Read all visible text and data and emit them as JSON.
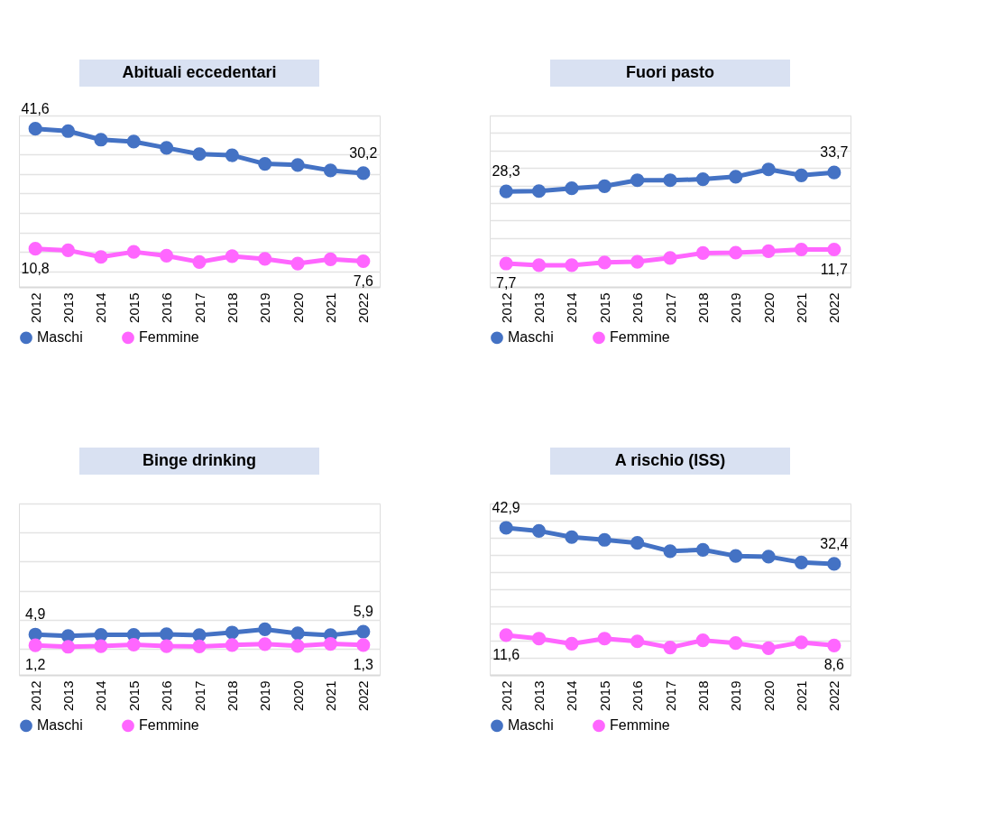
{
  "chart_data": [
    {
      "type": "line",
      "title": "Abituali eccedentari",
      "categories": [
        "2012",
        "2013",
        "2014",
        "2015",
        "2016",
        "2017",
        "2018",
        "2019",
        "2020",
        "2021",
        "2022"
      ],
      "ylim": [
        1,
        45
      ],
      "grid": "y",
      "tick_labels": "x",
      "legend": "bottom",
      "marker": "circle",
      "line_style": "solid",
      "series": [
        {
          "name": "Maschi",
          "color": "#4472c4",
          "values": [
            41.6,
            41.0,
            38.8,
            38.3,
            36.7,
            35.1,
            34.8,
            32.6,
            32.3,
            30.9,
            30.2
          ],
          "value_labels": [
            "41,6",
            null,
            null,
            null,
            null,
            null,
            null,
            null,
            null,
            null,
            "30,2"
          ]
        },
        {
          "name": "Femmine",
          "color": "#ff66ff",
          "values": [
            10.8,
            10.4,
            8.7,
            10.0,
            9.0,
            7.4,
            8.9,
            8.2,
            7.0,
            8.1,
            7.6
          ],
          "value_labels": [
            "10,8",
            null,
            null,
            null,
            null,
            null,
            null,
            null,
            null,
            null,
            "7,6"
          ]
        }
      ]
    },
    {
      "type": "line",
      "title": "Fuori pasto",
      "categories": [
        "2012",
        "2013",
        "2014",
        "2015",
        "2016",
        "2017",
        "2018",
        "2019",
        "2020",
        "2021",
        "2022"
      ],
      "ylim": [
        1,
        50
      ],
      "grid": "y",
      "tick_labels": "x",
      "legend": "bottom",
      "marker": "circle",
      "line_style": "solid",
      "series": [
        {
          "name": "Maschi",
          "color": "#4472c4",
          "values": [
            28.3,
            28.4,
            29.2,
            29.8,
            31.5,
            31.5,
            31.8,
            32.5,
            34.6,
            32.9,
            33.7
          ],
          "value_labels": [
            "28,3",
            null,
            null,
            null,
            null,
            null,
            null,
            null,
            null,
            null,
            "33,7"
          ]
        },
        {
          "name": "Femmine",
          "color": "#ff66ff",
          "values": [
            7.7,
            7.2,
            7.2,
            8.0,
            8.2,
            9.3,
            10.7,
            10.8,
            11.2,
            11.7,
            11.7
          ],
          "value_labels": [
            "7,7",
            null,
            null,
            null,
            null,
            null,
            null,
            null,
            null,
            null,
            "11,7"
          ]
        }
      ]
    },
    {
      "type": "line",
      "title": "Binge drinking",
      "categories": [
        "2012",
        "2013",
        "2014",
        "2015",
        "2016",
        "2017",
        "2018",
        "2019",
        "2020",
        "2021",
        "2022"
      ],
      "ylim": [
        -9,
        50
      ],
      "grid": "y",
      "tick_labels": "x",
      "legend": "bottom",
      "marker": "circle",
      "line_style": "solid",
      "series": [
        {
          "name": "Maschi",
          "color": "#4472c4",
          "values": [
            4.9,
            4.4,
            4.8,
            4.8,
            5.0,
            4.7,
            5.6,
            6.7,
            5.3,
            4.7,
            5.9
          ],
          "value_labels": [
            "4,9",
            null,
            null,
            null,
            null,
            null,
            null,
            null,
            null,
            null,
            "5,9"
          ]
        },
        {
          "name": "Femmine",
          "color": "#ff66ff",
          "values": [
            1.2,
            0.7,
            0.9,
            1.4,
            0.9,
            0.8,
            1.3,
            1.6,
            1.0,
            1.7,
            1.3
          ],
          "value_labels": [
            "1,2",
            null,
            null,
            null,
            null,
            null,
            null,
            null,
            null,
            null,
            "1,3"
          ]
        }
      ]
    },
    {
      "type": "line",
      "title": "A rischio (ISS)",
      "categories": [
        "2012",
        "2013",
        "2014",
        "2015",
        "2016",
        "2017",
        "2018",
        "2019",
        "2020",
        "2021",
        "2022"
      ],
      "ylim": [
        0,
        50
      ],
      "grid": "y",
      "tick_labels": "x",
      "legend": "bottom",
      "marker": "circle",
      "line_style": "solid",
      "series": [
        {
          "name": "Maschi",
          "color": "#4472c4",
          "values": [
            42.9,
            42.0,
            40.2,
            39.4,
            38.5,
            36.1,
            36.5,
            34.7,
            34.5,
            32.8,
            32.4
          ],
          "value_labels": [
            "42,9",
            null,
            null,
            null,
            null,
            null,
            null,
            null,
            null,
            null,
            "32,4"
          ]
        },
        {
          "name": "Femmine",
          "color": "#ff66ff",
          "values": [
            11.6,
            10.6,
            9.1,
            10.6,
            9.8,
            8.0,
            10.1,
            9.3,
            7.8,
            9.5,
            8.6
          ],
          "value_labels": [
            "11,6",
            null,
            null,
            null,
            null,
            null,
            null,
            null,
            null,
            null,
            "8,6"
          ]
        }
      ]
    }
  ]
}
